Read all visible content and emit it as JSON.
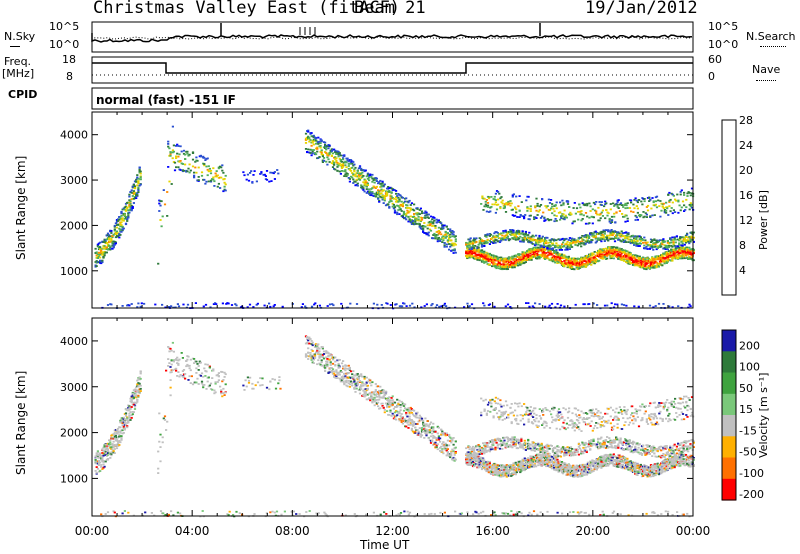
{
  "header": {
    "title": "Christmas Valley East (fitACF)",
    "beam": "Beam 21",
    "date": "19/Jan/2012"
  },
  "strips": {
    "nsky_label": "N.Sky",
    "nsearch_label": "N.Search",
    "nsky_ticks": [
      "10^5",
      "10^0"
    ],
    "nsearch_ticks": [
      "10^5",
      "10^0"
    ],
    "freq_label_line1": "Freq.",
    "freq_label_line2": "[MHz]",
    "freq_ticks": [
      "18",
      "8"
    ],
    "nave_label": "Nave",
    "nave_ticks": [
      "60",
      "0"
    ],
    "cpid_label": "CPID",
    "cpid_text": "normal (fast) -151 IF"
  },
  "chart_data": [
    {
      "type": "heatmap",
      "name": "power-panel",
      "ylabel": "Slant Range [km]",
      "ylim": [
        180,
        4500
      ],
      "yticks": [
        1000,
        2000,
        3000,
        4000
      ],
      "xlim": [
        0,
        24
      ],
      "colorbar": {
        "label": "Power [dB]",
        "ticks": [
          "4",
          "8",
          "12",
          "16",
          "20",
          "24",
          "28"
        ],
        "colors": [
          "#0000ff",
          "#2a4fd0",
          "#2e7a3a",
          "#4fae5a",
          "#e5d500",
          "#ff8a00",
          "#ff0000"
        ]
      }
    },
    {
      "type": "heatmap",
      "name": "velocity-panel",
      "ylabel": "Slant Range [km]",
      "ylim": [
        180,
        4500
      ],
      "yticks": [
        1000,
        2000,
        3000,
        4000
      ],
      "xlim": [
        0,
        24
      ],
      "xlabel": "Time UT",
      "xticks": [
        "00:00",
        "04:00",
        "08:00",
        "12:00",
        "16:00",
        "20:00",
        "00:00"
      ],
      "colorbar": {
        "label": "Velocity [m s⁻¹]",
        "ticks": [
          "200",
          "100",
          "50",
          "15",
          "-15",
          "-50",
          "-100",
          "-200"
        ],
        "colors": [
          "#1a1aa8",
          "#2e7a3a",
          "#3fa33f",
          "#7ac87a",
          "#c0c0c0",
          "#ffb000",
          "#ff7000",
          "#ff0000"
        ]
      }
    }
  ]
}
